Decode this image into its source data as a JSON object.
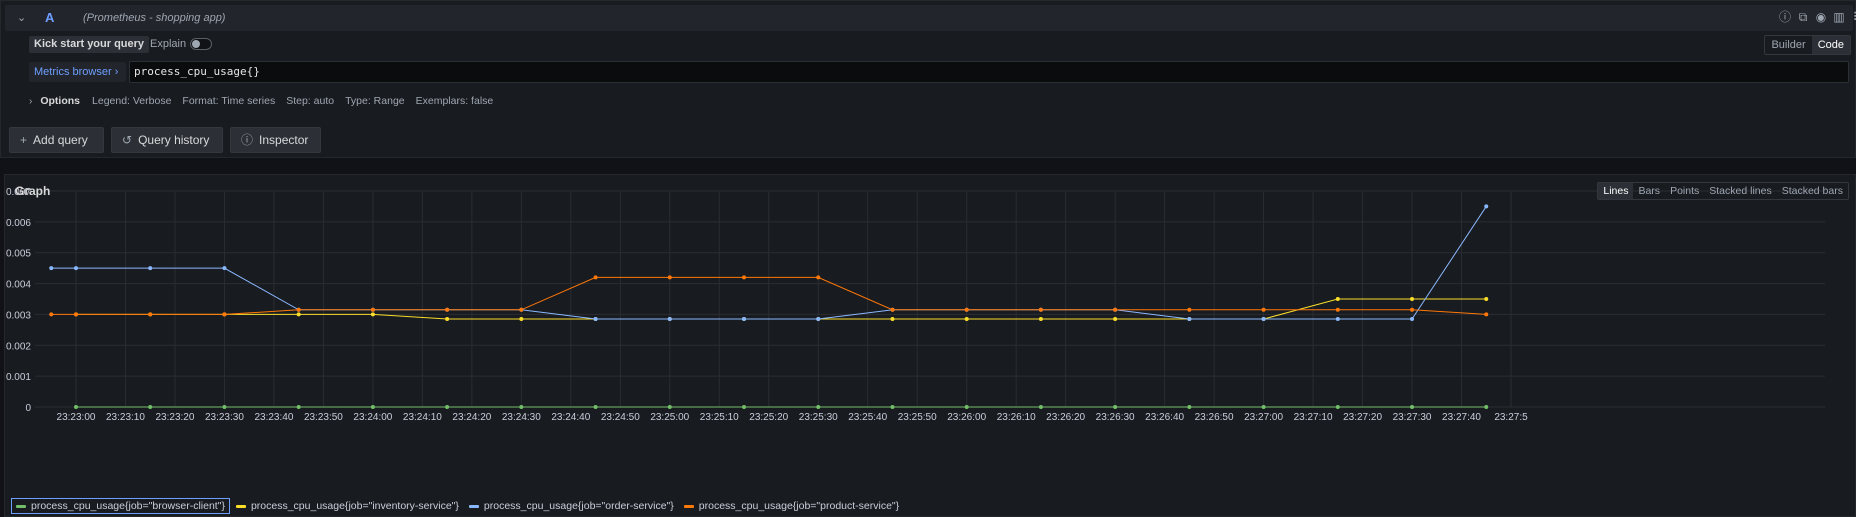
{
  "query": {
    "ref_id": "A",
    "datasource": "(Prometheus - shopping app)",
    "kick_start_label": "Kick start your query",
    "explain_label": "Explain",
    "explain_on": false,
    "mode_builder": "Builder",
    "mode_code": "Code",
    "active_mode": "Code",
    "metrics_browser_label": "Metrics browser",
    "expression": "process_cpu_usage{}",
    "options_title": "Options",
    "options": {
      "legend": "Legend: Verbose",
      "format": "Format: Time series",
      "step": "Step: auto",
      "type": "Type: Range",
      "exemplars": "Exemplars: false"
    },
    "header_icons": [
      "help-icon",
      "copy-icon",
      "eye-icon",
      "trash-icon",
      "drag-handle-icon"
    ]
  },
  "actions": {
    "add_query": "Add query",
    "query_history": "Query history",
    "inspector": "Inspector"
  },
  "graph": {
    "title": "Graph",
    "viz_options": [
      "Lines",
      "Bars",
      "Points",
      "Stacked lines",
      "Stacked bars"
    ],
    "active_viz": "Lines"
  },
  "chart_data": {
    "type": "line",
    "title": "",
    "ylim": [
      0,
      0.007
    ],
    "y_ticks": [
      "0",
      "0.001",
      "0.002",
      "0.003",
      "0.004",
      "0.005",
      "0.006",
      "0.007"
    ],
    "x_ticks": [
      "23:23:00",
      "23:23:10",
      "23:23:20",
      "23:23:30",
      "23:23:40",
      "23:23:50",
      "23:24:00",
      "23:24:10",
      "23:24:20",
      "23:24:30",
      "23:24:40",
      "23:24:50",
      "23:25:00",
      "23:25:10",
      "23:25:20",
      "23:25:30",
      "23:25:40",
      "23:25:50",
      "23:26:00",
      "23:26:10",
      "23:26:20",
      "23:26:30",
      "23:26:40",
      "23:26:50",
      "23:27:00",
      "23:27:10",
      "23:27:20",
      "23:27:30",
      "23:27:40",
      "23:27:5"
    ],
    "x": [
      "23:22:55",
      "23:23:00",
      "23:23:15",
      "23:23:30",
      "23:23:45",
      "23:24:00",
      "23:24:15",
      "23:24:30",
      "23:24:45",
      "23:25:00",
      "23:25:15",
      "23:25:30",
      "23:25:45",
      "23:26:00",
      "23:26:15",
      "23:26:30",
      "23:26:45",
      "23:27:00",
      "23:27:15",
      "23:27:30",
      "23:27:45"
    ],
    "grid": true,
    "legend_position": "bottom-left",
    "series": [
      {
        "name": "process_cpu_usage{job=\"browser-client\"}",
        "color": "#73bf69",
        "selected": true,
        "values": [
          null,
          0,
          0,
          0,
          0,
          0,
          0,
          0,
          0,
          0,
          0,
          0,
          0,
          0,
          0,
          0,
          0,
          0,
          0,
          0,
          0
        ]
      },
      {
        "name": "process_cpu_usage{job=\"inventory-service\"}",
        "color": "#fade2a",
        "values": [
          null,
          0.003,
          0.003,
          0.003,
          0.003,
          0.003,
          0.00285,
          0.00285,
          0.00285,
          0.00285,
          0.00285,
          0.00285,
          0.00285,
          0.00285,
          0.00285,
          0.00285,
          0.00285,
          0.00285,
          0.0035,
          0.0035,
          0.0035
        ]
      },
      {
        "name": "process_cpu_usage{job=\"order-service\"}",
        "color": "#8ab8ff",
        "values": [
          0.0045,
          0.0045,
          0.0045,
          0.0045,
          0.00315,
          0.00315,
          0.00315,
          0.00315,
          0.00285,
          0.00285,
          0.00285,
          0.00285,
          0.00315,
          0.00315,
          0.00315,
          0.00315,
          0.00285,
          0.00285,
          0.00285,
          0.00285,
          0.0065
        ]
      },
      {
        "name": "process_cpu_usage{job=\"product-service\"}",
        "color": "#ff780a",
        "values": [
          0.003,
          0.003,
          0.003,
          0.003,
          0.00315,
          0.00315,
          0.00315,
          0.00315,
          0.0042,
          0.0042,
          0.0042,
          0.0042,
          0.00315,
          0.00315,
          0.00315,
          0.00315,
          0.00315,
          0.00315,
          0.00315,
          0.00315,
          0.003
        ]
      }
    ]
  }
}
